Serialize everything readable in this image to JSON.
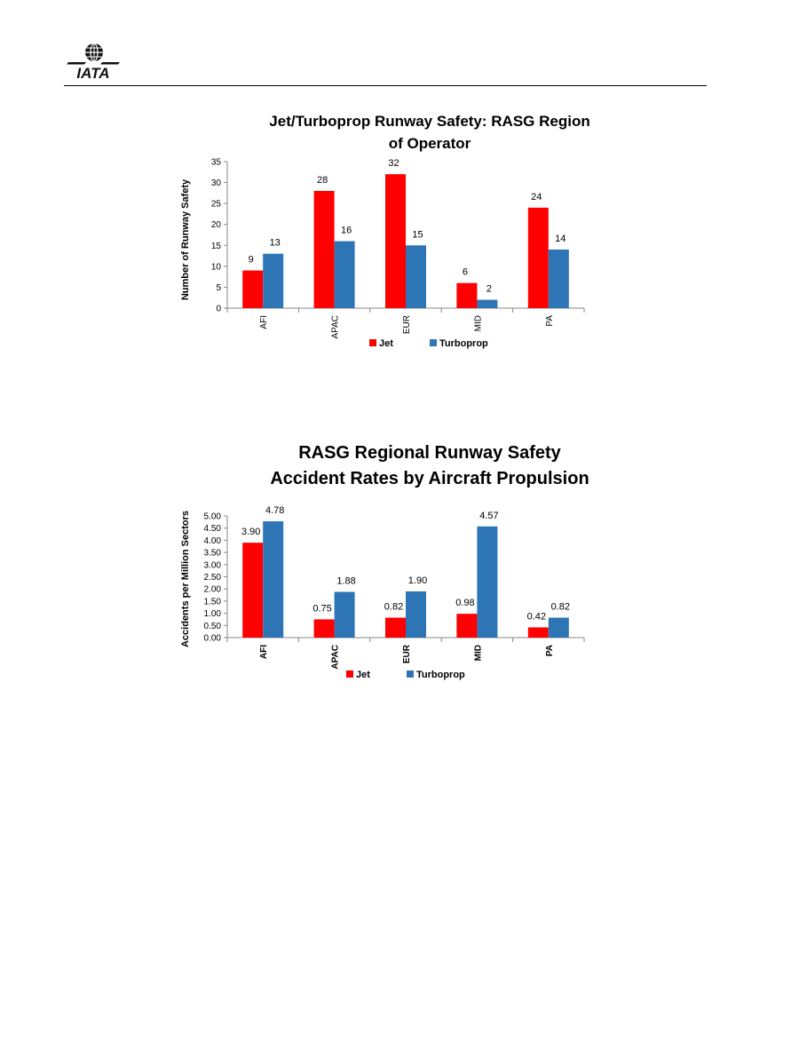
{
  "header": {
    "logo_text": "IATA"
  },
  "colors": {
    "jet": "#FF0000",
    "turboprop": "#2E75B6",
    "axis": "#888888"
  },
  "chart_data": [
    {
      "type": "bar",
      "title_lines": [
        "Jet/Turboprop Runway Safety: RASG Region",
        "of Operator"
      ],
      "xlabel": "",
      "ylabel": "Number of Runway Safety",
      "categories": [
        "AFI",
        "APAC",
        "EUR",
        "MID",
        "PA"
      ],
      "series": [
        {
          "name": "Jet",
          "values": [
            9,
            28,
            32,
            6,
            24
          ]
        },
        {
          "name": "Turboprop",
          "values": [
            13,
            16,
            15,
            2,
            14
          ]
        }
      ],
      "ylim": [
        0,
        35
      ],
      "yticks": [
        "0",
        "5",
        "10",
        "15",
        "20",
        "25",
        "30",
        "35"
      ],
      "data_labels": [
        [
          "9",
          "28",
          "32",
          "6",
          "24"
        ],
        [
          "13",
          "16",
          "15",
          "2",
          "14"
        ]
      ],
      "legend": "bottom",
      "grid": false
    },
    {
      "type": "bar",
      "title_lines": [
        "RASG Regional Runway Safety",
        "Accident Rates by Aircraft Propulsion"
      ],
      "xlabel": "",
      "ylabel": "Accidents per Million Sectors",
      "categories": [
        "AFI",
        "APAC",
        "EUR",
        "MID",
        "PA"
      ],
      "series": [
        {
          "name": "Jet",
          "values": [
            3.9,
            0.75,
            0.82,
            0.98,
            0.42
          ]
        },
        {
          "name": "Turboprop",
          "values": [
            4.78,
            1.88,
            1.9,
            4.57,
            0.82
          ]
        }
      ],
      "ylim": [
        0,
        5
      ],
      "yticks": [
        "0.00",
        "0.50",
        "1.00",
        "1.50",
        "2.00",
        "2.50",
        "3.00",
        "3.50",
        "4.00",
        "4.50",
        "5.00"
      ],
      "data_labels": [
        [
          "3.90",
          "0.75",
          "0.82",
          "0.98",
          "0.42"
        ],
        [
          "4.78",
          "1.88",
          "1.90",
          "4.57",
          "0.82"
        ]
      ],
      "legend": "bottom",
      "grid": false
    }
  ]
}
